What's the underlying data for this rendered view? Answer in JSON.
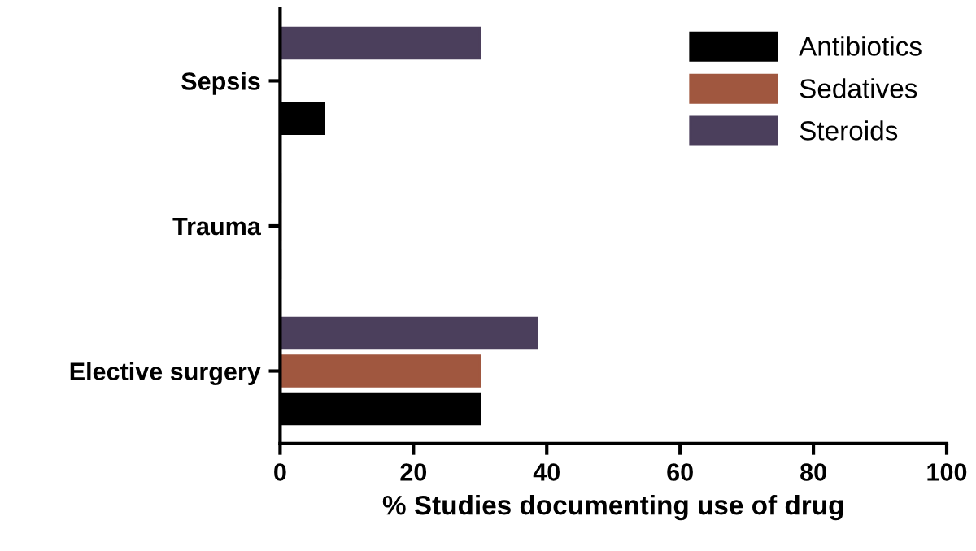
{
  "chart_data": {
    "type": "bar",
    "orientation": "horizontal",
    "xlabel": "% Studies documenting use of drug",
    "categories": [
      "Sepsis",
      "Trauma",
      "Elective surgery"
    ],
    "series": [
      {
        "name": "Antibiotics",
        "color": "#000000",
        "values": [
          6.5,
          0,
          30
        ]
      },
      {
        "name": "Sedatives",
        "color": "#a0573f",
        "values": [
          0,
          0,
          30
        ]
      },
      {
        "name": "Steroids",
        "color": "#4b3f5c",
        "values": [
          30,
          0,
          38.5
        ]
      }
    ],
    "xlim": [
      0,
      100
    ],
    "xticks": [
      0,
      20,
      40,
      60,
      80,
      100
    ],
    "grid": false,
    "legend": "top right"
  }
}
